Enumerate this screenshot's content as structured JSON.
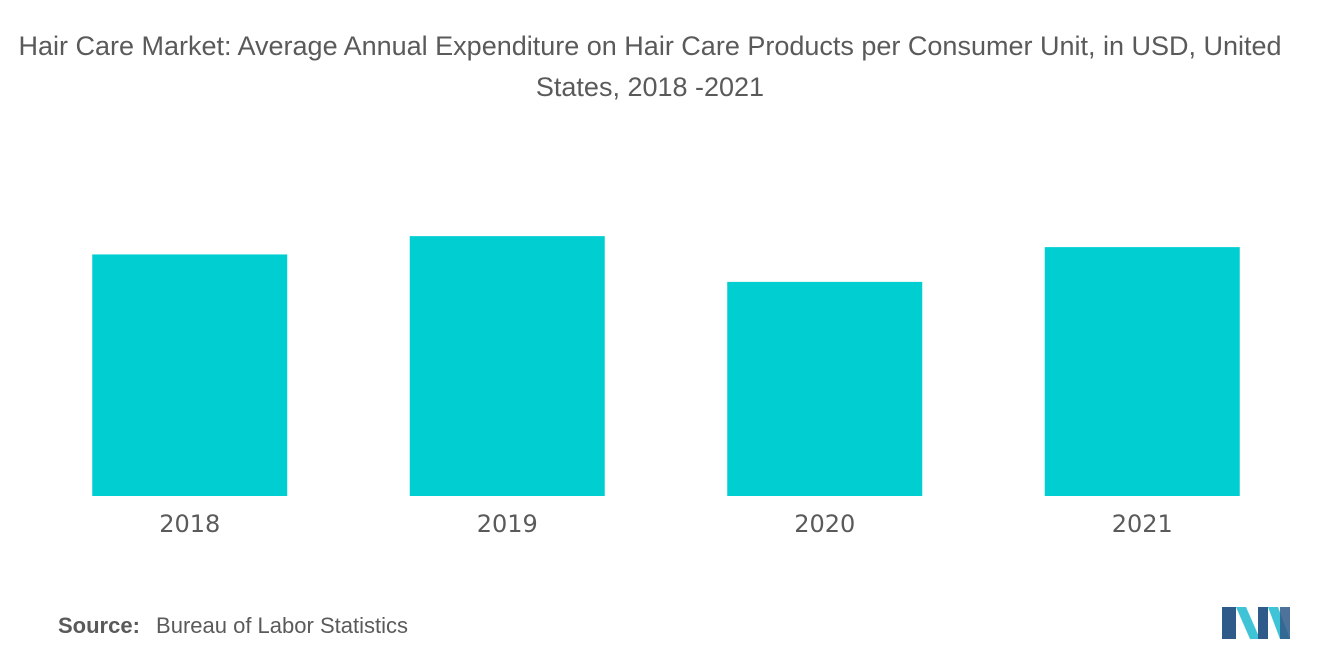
{
  "chart_data": {
    "type": "bar",
    "title": "Hair Care Market: Average Annual Expenditure on Hair Care Products per Consumer Unit, in USD, United States, 2018 -2021",
    "categories": [
      "2018",
      "2019",
      "2020",
      "2021"
    ],
    "values": [
      66,
      71,
      58.5,
      68
    ],
    "xlabel": "",
    "ylabel": "",
    "ylim": [
      0,
      100
    ],
    "grid": false,
    "legend": "none",
    "bar_color": "#00ced1"
  },
  "source": {
    "label": "Source:",
    "text": "Bureau of Labor Statistics"
  },
  "colors": {
    "bar": "#00ced1",
    "text": "#5a5a5a",
    "logo_dark": "#2e5b8a",
    "logo_light": "#3ec4d6"
  },
  "logo": {
    "icon": "company-logo-icon"
  }
}
